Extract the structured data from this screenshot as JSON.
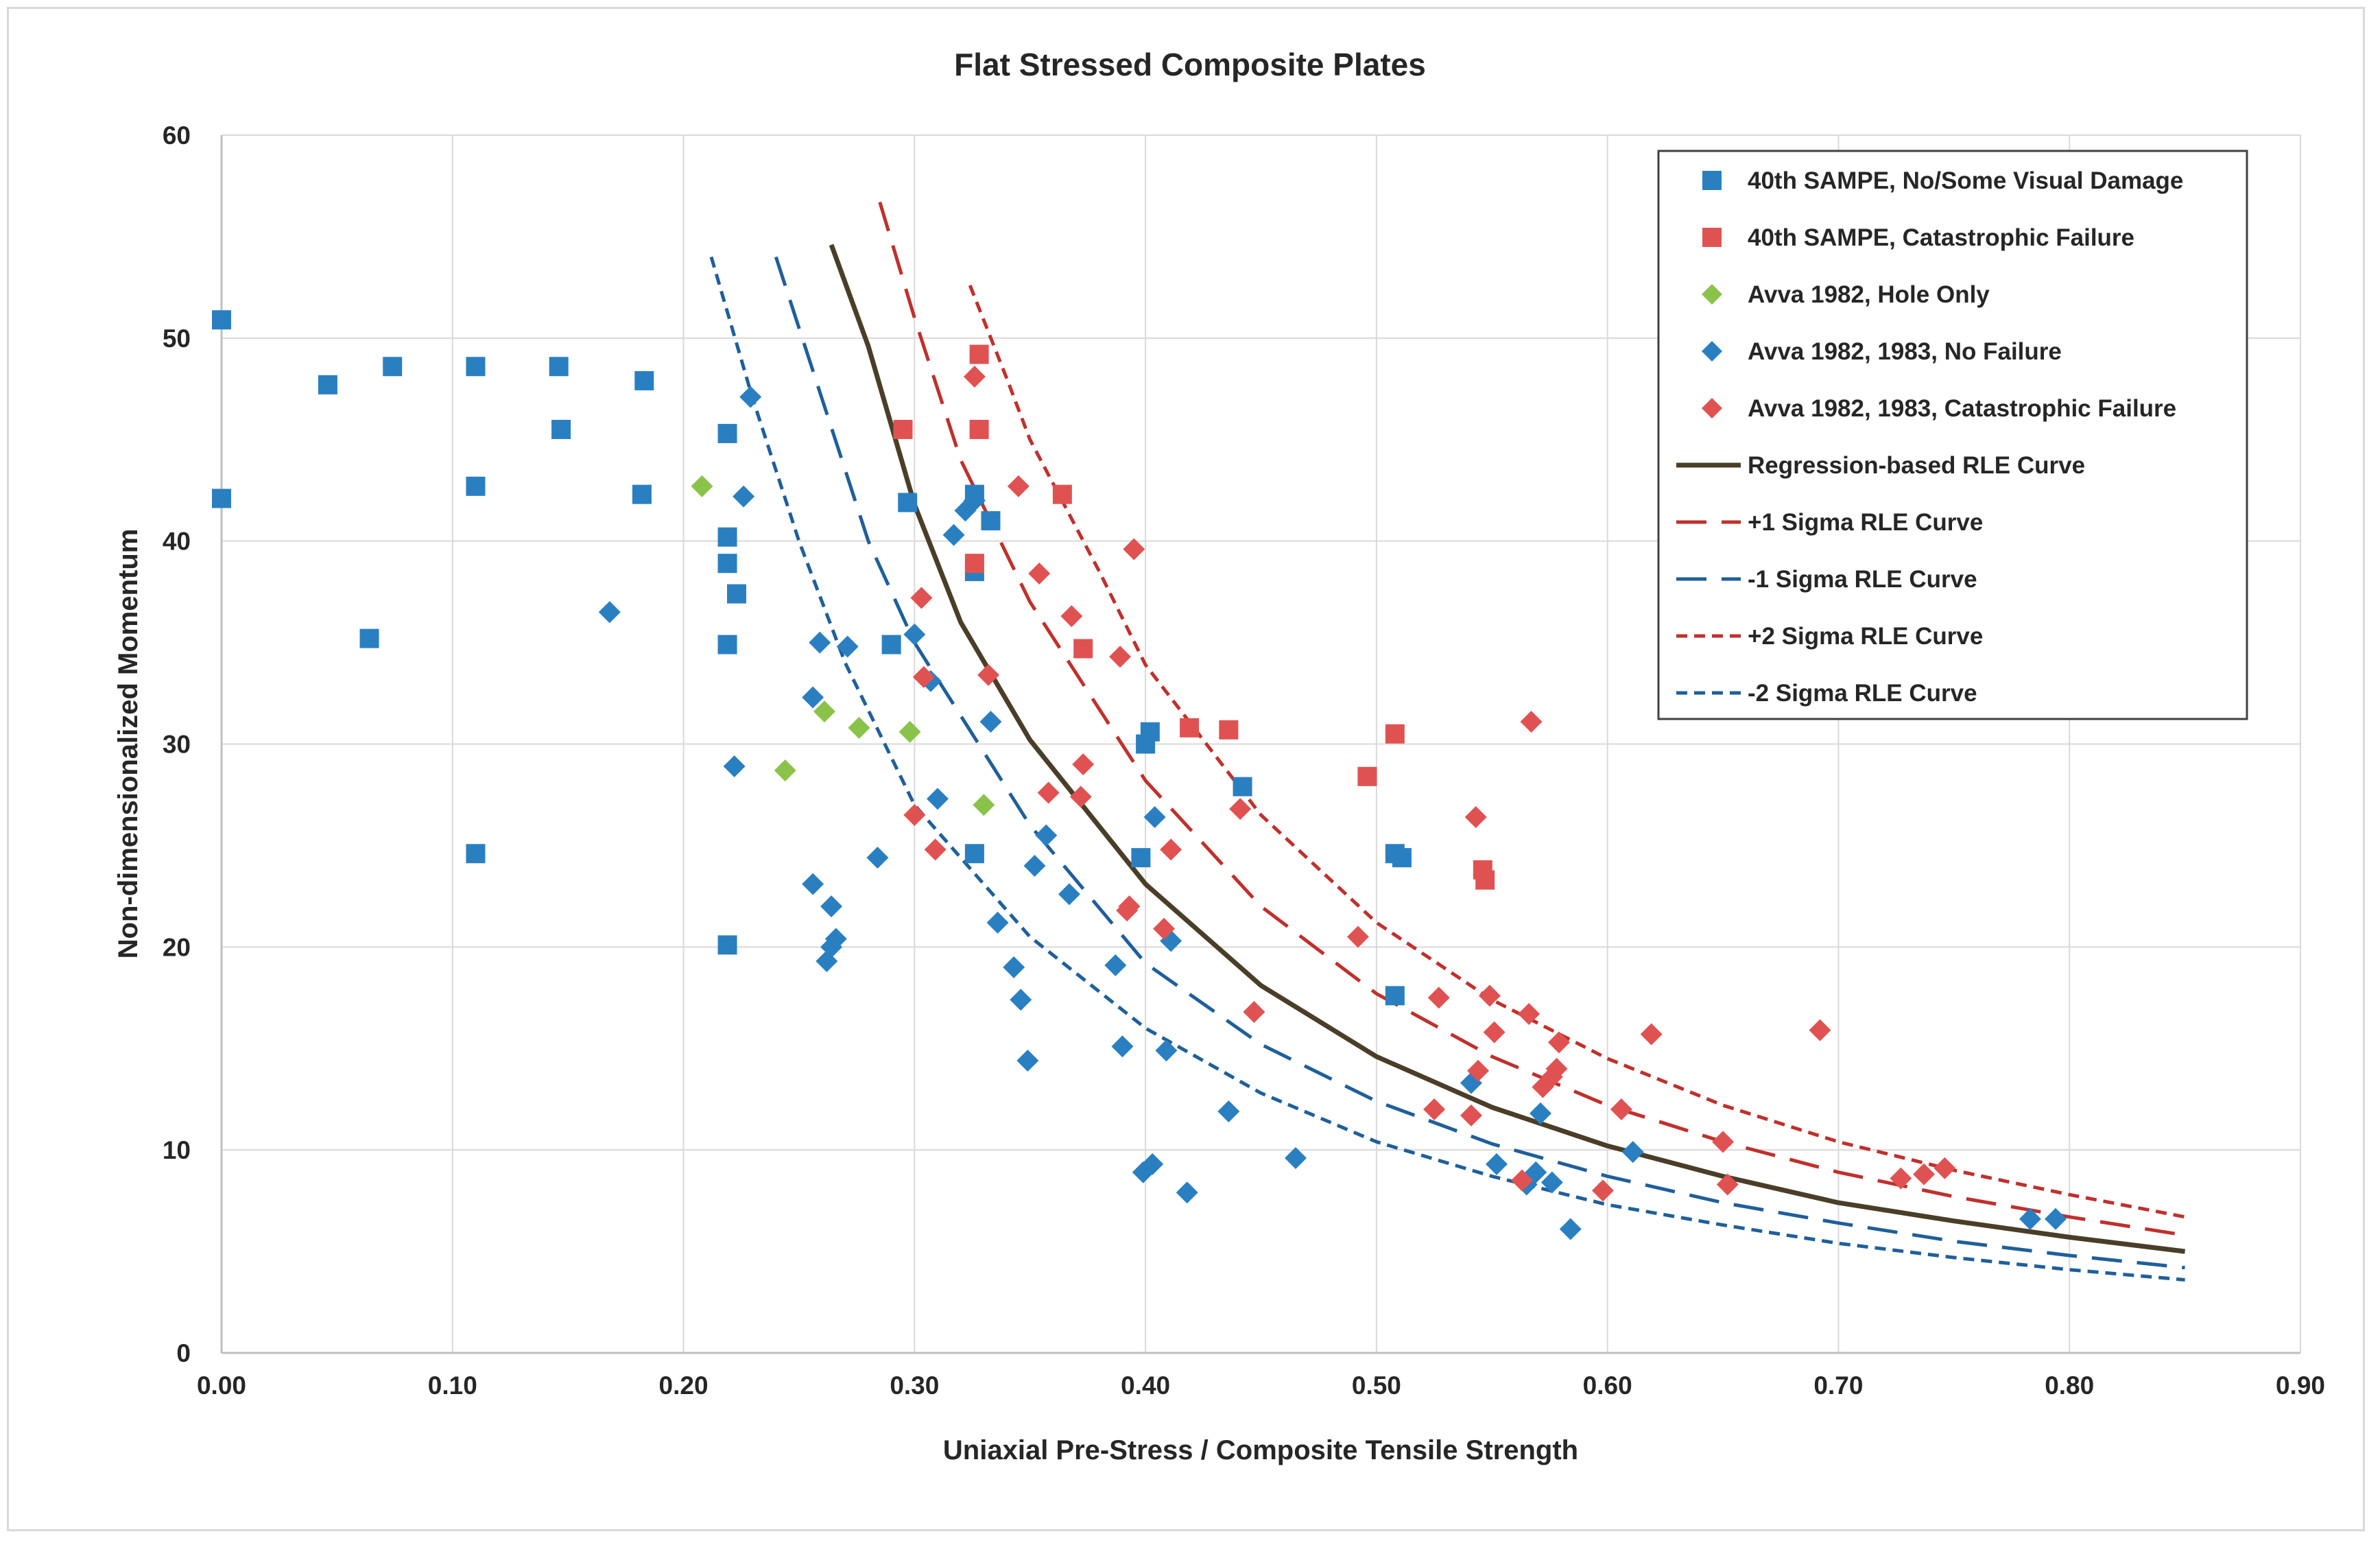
{
  "chart_data": {
    "type": "scatter",
    "title": "Flat Stressed Composite Plates",
    "xlabel": "Uniaxial Pre-Stress / Composite Tensile Strength",
    "ylabel": "Non-dimensionalized Momentum",
    "xlim": [
      0,
      0.9
    ],
    "ylim": [
      0,
      60
    ],
    "xticks": [
      "0.00",
      "0.10",
      "0.20",
      "0.30",
      "0.40",
      "0.50",
      "0.60",
      "0.70",
      "0.80",
      "0.90"
    ],
    "yticks": [
      "0",
      "10",
      "20",
      "30",
      "40",
      "50",
      "60"
    ],
    "grid": true,
    "legend_position": "top-right",
    "colors": {
      "blue": "#2a7fc1",
      "red": "#e05252",
      "green": "#8bc34a",
      "dark": "#4a3e28",
      "darkred": "#c0302c",
      "darkblue": "#1f5f9a"
    },
    "series": [
      {
        "name": "40th SAMPE, No/Some Visual Damage",
        "marker": "square",
        "color": "#2a7fc1",
        "points": [
          [
            0.0,
            50.9
          ],
          [
            0.0,
            42.1
          ],
          [
            0.046,
            47.7
          ],
          [
            0.064,
            35.2
          ],
          [
            0.074,
            48.6
          ],
          [
            0.11,
            48.6
          ],
          [
            0.11,
            42.7
          ],
          [
            0.11,
            24.6
          ],
          [
            0.146,
            48.6
          ],
          [
            0.147,
            45.5
          ],
          [
            0.182,
            42.3
          ],
          [
            0.183,
            47.9
          ],
          [
            0.219,
            45.3
          ],
          [
            0.219,
            40.2
          ],
          [
            0.219,
            38.9
          ],
          [
            0.219,
            34.9
          ],
          [
            0.219,
            20.1
          ],
          [
            0.223,
            37.4
          ],
          [
            0.29,
            34.9
          ],
          [
            0.297,
            41.9
          ],
          [
            0.326,
            42.3
          ],
          [
            0.326,
            38.5
          ],
          [
            0.326,
            24.6
          ],
          [
            0.333,
            41.0
          ],
          [
            0.398,
            24.4
          ],
          [
            0.4,
            30.0
          ],
          [
            0.402,
            30.6
          ],
          [
            0.442,
            27.9
          ],
          [
            0.508,
            24.6
          ],
          [
            0.511,
            24.4
          ],
          [
            0.508,
            17.6
          ]
        ]
      },
      {
        "name": "40th SAMPE, Catastrophic Failure",
        "marker": "square",
        "color": "#e05252",
        "points": [
          [
            0.295,
            45.5
          ],
          [
            0.328,
            49.2
          ],
          [
            0.328,
            45.5
          ],
          [
            0.326,
            38.9
          ],
          [
            0.364,
            42.3
          ],
          [
            0.373,
            34.7
          ],
          [
            0.419,
            30.8
          ],
          [
            0.436,
            30.7
          ],
          [
            0.496,
            28.4
          ],
          [
            0.508,
            30.5
          ],
          [
            0.546,
            23.8
          ],
          [
            0.547,
            23.3
          ]
        ]
      },
      {
        "name": "Avva 1982, Hole Only",
        "marker": "diamond",
        "color": "#8bc34a",
        "points": [
          [
            0.208,
            42.7
          ],
          [
            0.244,
            28.7
          ],
          [
            0.261,
            31.6
          ],
          [
            0.276,
            30.8
          ],
          [
            0.298,
            30.6
          ],
          [
            0.33,
            27.0
          ]
        ]
      },
      {
        "name": "Avva 1982, 1983, No Failure",
        "marker": "diamond",
        "color": "#2a7fc1",
        "points": [
          [
            0.168,
            36.5
          ],
          [
            0.222,
            28.9
          ],
          [
            0.226,
            42.2
          ],
          [
            0.229,
            47.1
          ],
          [
            0.256,
            32.3
          ],
          [
            0.256,
            23.1
          ],
          [
            0.259,
            35.0
          ],
          [
            0.262,
            19.3
          ],
          [
            0.264,
            22.0
          ],
          [
            0.264,
            20.0
          ],
          [
            0.266,
            20.4
          ],
          [
            0.271,
            34.8
          ],
          [
            0.284,
            24.4
          ],
          [
            0.3,
            35.4
          ],
          [
            0.307,
            33.1
          ],
          [
            0.31,
            27.3
          ],
          [
            0.317,
            40.3
          ],
          [
            0.322,
            41.5
          ],
          [
            0.326,
            42.0
          ],
          [
            0.333,
            31.1
          ],
          [
            0.336,
            21.2
          ],
          [
            0.343,
            19.0
          ],
          [
            0.346,
            17.4
          ],
          [
            0.349,
            14.4
          ],
          [
            0.352,
            24.0
          ],
          [
            0.357,
            25.5
          ],
          [
            0.367,
            22.6
          ],
          [
            0.387,
            19.1
          ],
          [
            0.39,
            15.1
          ],
          [
            0.399,
            8.9
          ],
          [
            0.403,
            9.3
          ],
          [
            0.404,
            26.4
          ],
          [
            0.409,
            14.9
          ],
          [
            0.411,
            20.3
          ],
          [
            0.418,
            7.9
          ],
          [
            0.436,
            11.9
          ],
          [
            0.465,
            9.6
          ],
          [
            0.541,
            13.3
          ],
          [
            0.552,
            9.3
          ],
          [
            0.565,
            8.3
          ],
          [
            0.569,
            8.9
          ],
          [
            0.571,
            11.8
          ],
          [
            0.576,
            8.4
          ],
          [
            0.584,
            6.1
          ],
          [
            0.611,
            9.9
          ],
          [
            0.783,
            6.6
          ],
          [
            0.794,
            6.6
          ]
        ]
      },
      {
        "name": "Avva 1982, 1983, Catastrophic Failure",
        "marker": "diamond",
        "color": "#e05252",
        "points": [
          [
            0.3,
            26.5
          ],
          [
            0.303,
            37.2
          ],
          [
            0.304,
            33.3
          ],
          [
            0.309,
            24.8
          ],
          [
            0.326,
            48.1
          ],
          [
            0.332,
            33.4
          ],
          [
            0.345,
            42.7
          ],
          [
            0.354,
            38.4
          ],
          [
            0.358,
            27.6
          ],
          [
            0.368,
            36.3
          ],
          [
            0.372,
            27.4
          ],
          [
            0.373,
            29.0
          ],
          [
            0.389,
            34.3
          ],
          [
            0.392,
            21.8
          ],
          [
            0.393,
            22.0
          ],
          [
            0.395,
            39.6
          ],
          [
            0.408,
            20.9
          ],
          [
            0.411,
            24.8
          ],
          [
            0.441,
            26.8
          ],
          [
            0.447,
            16.8
          ],
          [
            0.492,
            20.5
          ],
          [
            0.525,
            12.0
          ],
          [
            0.527,
            17.5
          ],
          [
            0.541,
            11.7
          ],
          [
            0.543,
            26.4
          ],
          [
            0.544,
            13.9
          ],
          [
            0.549,
            17.6
          ],
          [
            0.551,
            15.8
          ],
          [
            0.563,
            8.5
          ],
          [
            0.566,
            16.7
          ],
          [
            0.567,
            31.1
          ],
          [
            0.572,
            13.1
          ],
          [
            0.576,
            13.6
          ],
          [
            0.578,
            14.0
          ],
          [
            0.579,
            15.3
          ],
          [
            0.598,
            8.0
          ],
          [
            0.606,
            12.0
          ],
          [
            0.619,
            15.7
          ],
          [
            0.65,
            10.4
          ],
          [
            0.652,
            8.3
          ],
          [
            0.692,
            15.9
          ],
          [
            0.727,
            8.6
          ],
          [
            0.737,
            8.8
          ],
          [
            0.746,
            9.1
          ]
        ]
      },
      {
        "name": "Regression-based RLE Curve",
        "style": "solid",
        "color": "#4a3e28",
        "points": [
          [
            0.264,
            54.6
          ],
          [
            0.28,
            49.6
          ],
          [
            0.3,
            41.8
          ],
          [
            0.32,
            36.0
          ],
          [
            0.35,
            30.2
          ],
          [
            0.4,
            23.1
          ],
          [
            0.45,
            18.1
          ],
          [
            0.5,
            14.6
          ],
          [
            0.55,
            12.1
          ],
          [
            0.6,
            10.2
          ],
          [
            0.65,
            8.7
          ],
          [
            0.7,
            7.4
          ],
          [
            0.75,
            6.5
          ],
          [
            0.8,
            5.7
          ],
          [
            0.85,
            5.0
          ]
        ]
      },
      {
        "name": "+1 Sigma RLE Curve",
        "style": "longdash",
        "color": "#c0302c",
        "points": [
          [
            0.285,
            56.7
          ],
          [
            0.3,
            51.0
          ],
          [
            0.32,
            44.0
          ],
          [
            0.35,
            37.0
          ],
          [
            0.4,
            28.2
          ],
          [
            0.45,
            22.0
          ],
          [
            0.5,
            17.7
          ],
          [
            0.55,
            14.6
          ],
          [
            0.6,
            12.2
          ],
          [
            0.65,
            10.4
          ],
          [
            0.7,
            8.9
          ],
          [
            0.75,
            7.7
          ],
          [
            0.8,
            6.7
          ],
          [
            0.85,
            5.8
          ]
        ]
      },
      {
        "name": "-1 Sigma RLE Curve",
        "style": "longdash",
        "color": "#1f5f9a",
        "points": [
          [
            0.24,
            54.0
          ],
          [
            0.26,
            47.0
          ],
          [
            0.28,
            40.0
          ],
          [
            0.3,
            35.0
          ],
          [
            0.35,
            26.0
          ],
          [
            0.4,
            19.2
          ],
          [
            0.45,
            15.2
          ],
          [
            0.5,
            12.4
          ],
          [
            0.55,
            10.3
          ],
          [
            0.6,
            8.7
          ],
          [
            0.65,
            7.4
          ],
          [
            0.7,
            6.4
          ],
          [
            0.75,
            5.5
          ],
          [
            0.8,
            4.8
          ],
          [
            0.85,
            4.2
          ]
        ]
      },
      {
        "name": "+2 Sigma RLE Curve",
        "style": "dash",
        "color": "#c0302c",
        "points": [
          [
            0.324,
            52.6
          ],
          [
            0.34,
            48.0
          ],
          [
            0.35,
            45.0
          ],
          [
            0.38,
            38.5
          ],
          [
            0.4,
            33.9
          ],
          [
            0.45,
            26.5
          ],
          [
            0.5,
            21.2
          ],
          [
            0.55,
            17.4
          ],
          [
            0.6,
            14.5
          ],
          [
            0.65,
            12.2
          ],
          [
            0.7,
            10.4
          ],
          [
            0.75,
            9.0
          ],
          [
            0.8,
            7.8
          ],
          [
            0.85,
            6.7
          ]
        ]
      },
      {
        "name": "-2 Sigma RLE Curve",
        "style": "dash",
        "color": "#1f5f9a",
        "points": [
          [
            0.212,
            54.0
          ],
          [
            0.23,
            47.0
          ],
          [
            0.25,
            40.0
          ],
          [
            0.27,
            34.0
          ],
          [
            0.3,
            27.0
          ],
          [
            0.35,
            20.5
          ],
          [
            0.4,
            16.0
          ],
          [
            0.45,
            12.8
          ],
          [
            0.5,
            10.4
          ],
          [
            0.55,
            8.7
          ],
          [
            0.6,
            7.3
          ],
          [
            0.65,
            6.3
          ],
          [
            0.7,
            5.4
          ],
          [
            0.75,
            4.7
          ],
          [
            0.8,
            4.1
          ],
          [
            0.85,
            3.6
          ]
        ]
      }
    ]
  }
}
